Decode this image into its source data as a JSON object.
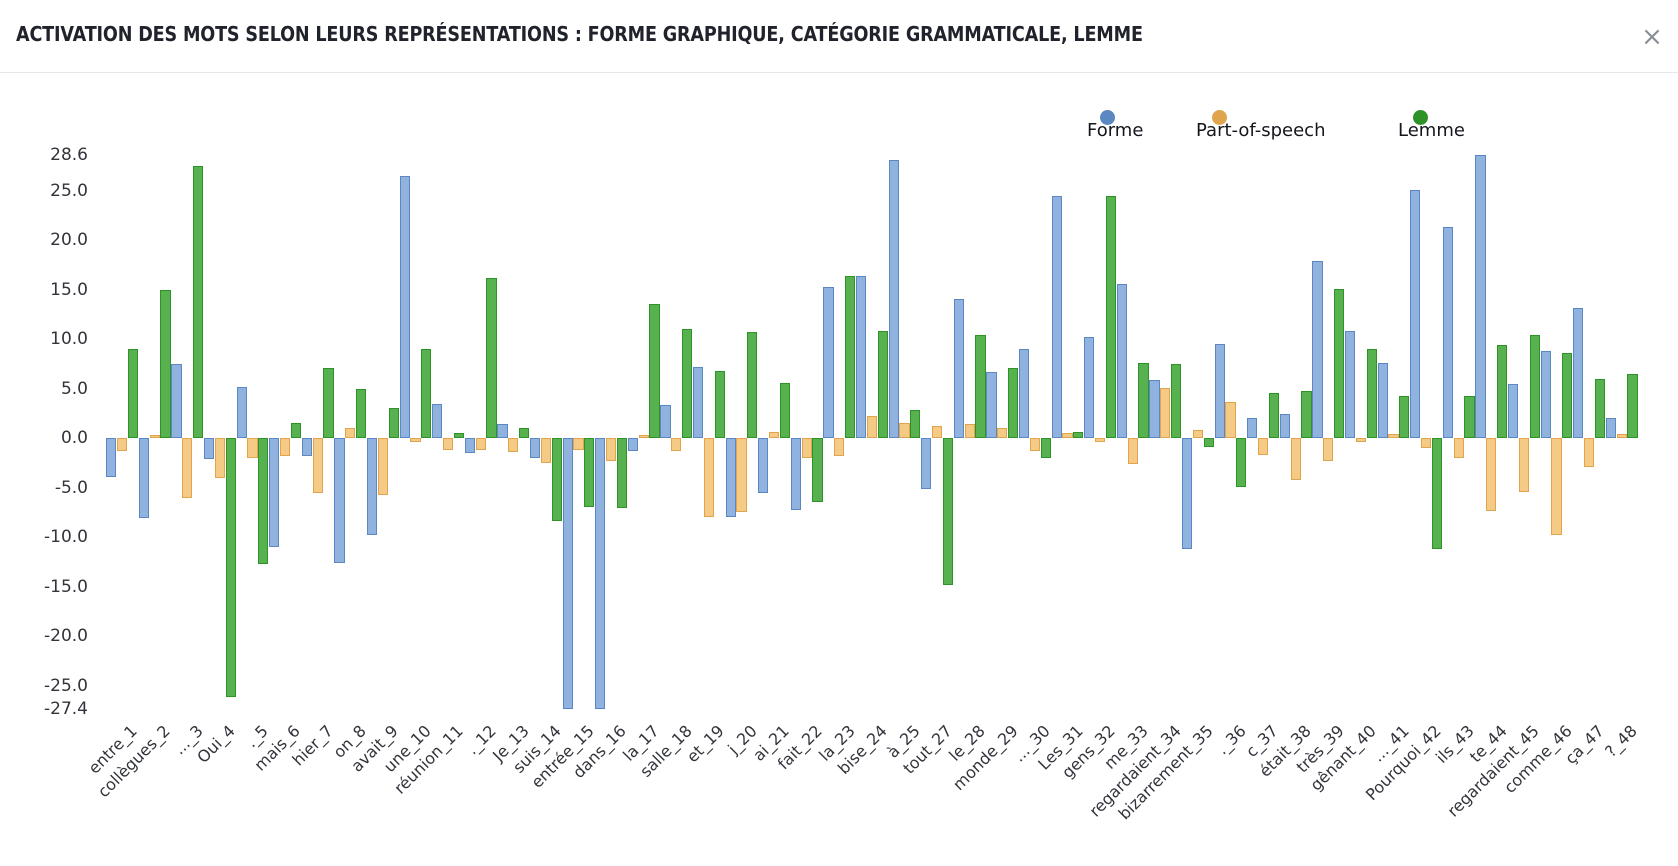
{
  "window": {
    "title": "ACTIVATION DES MOTS SELON LEURS REPRÉSENTATIONS : FORME GRAPHIQUE, CATÉGORIE GRAMMATICALE, LEMME",
    "close_label": "×"
  },
  "chart_data": {
    "type": "bar",
    "title": "ACTIVATION DES MOTS SELON LEURS REPRÉSENTATIONS : FORME GRAPHIQUE, CATÉGORIE GRAMMATICALE, LEMME",
    "xlabel": "",
    "ylabel": "",
    "grid": false,
    "legend_position": "top-right",
    "ylim": [
      -27.4,
      28.6
    ],
    "ytick_labels": [
      "28.6",
      "25.0",
      "20.0",
      "15.0",
      "10.0",
      "5.0",
      "0.0",
      "-5.0",
      "-10.0",
      "-15.0",
      "-20.0",
      "-25.0",
      "-27.4"
    ],
    "categories": [
      "entre_1",
      "collègues_2",
      "..._3",
      "Oui_4",
      "._5",
      "mais_6",
      "hier_7",
      "on_8",
      "avait_9",
      "une_10",
      "réunion_11",
      "._12",
      "Je_13",
      "suis_14",
      "entrée_15",
      "dans_16",
      "la_17",
      "salle_18",
      "et_19",
      "j_20",
      "ai_21",
      "fait_22",
      "la_23",
      "bise_24",
      "à_25",
      "tout_27",
      "le_28",
      "monde_29",
      "..._30",
      "Les_31",
      "gens_32",
      "me_33",
      "regardaient_34",
      "bizarrement_35",
      "._36",
      "c_37",
      "était_38",
      "très_39",
      "gênant_40",
      "..._41",
      "Pourquoi_42",
      "ils_43",
      "te_44",
      "regardaient_45",
      "comme_46",
      "ça_47",
      "?_48"
    ],
    "series": [
      {
        "name": "Forme",
        "fill": "#8FB2DE",
        "border": "#5B87C2",
        "values": [
          -3.9,
          -8.1,
          7.5,
          -2.1,
          5.2,
          -11.0,
          -1.8,
          -12.6,
          -9.8,
          26.5,
          3.4,
          -1.5,
          1.4,
          -2.0,
          -27.4,
          -27.4,
          -1.3,
          3.3,
          7.2,
          -8.0,
          -5.6,
          -7.3,
          15.3,
          16.4,
          28.1,
          -5.2,
          14.0,
          6.7,
          9.0,
          24.4,
          10.2,
          15.6,
          5.9,
          -11.2,
          9.5,
          2.0,
          2.4,
          17.9,
          10.8,
          7.6,
          25.1,
          21.3,
          28.6,
          5.5,
          8.8,
          13.1,
          2.0
        ]
      },
      {
        "name": "Part-of-speech",
        "fill": "#F5CA85",
        "border": "#E0A44E",
        "values": [
          -1.3,
          0.3,
          -6.1,
          -4.0,
          -2.0,
          -1.8,
          -5.6,
          1.0,
          -5.8,
          -0.4,
          -1.2,
          -1.2,
          -1.4,
          -2.5,
          -1.2,
          -2.3,
          0.3,
          -1.3,
          -8.0,
          -7.5,
          0.6,
          -2.0,
          -1.8,
          2.2,
          1.5,
          1.2,
          1.4,
          1.0,
          -1.3,
          0.5,
          -0.4,
          -2.6,
          5.1,
          0.8,
          3.6,
          -1.7,
          -4.2,
          -2.3,
          -0.4,
          0.4,
          -1.0,
          -2.0,
          -7.4,
          -5.5,
          -9.8,
          -2.9,
          0.4
        ]
      },
      {
        "name": "Lemme",
        "fill": "#57B14E",
        "border": "#2E9327",
        "values": [
          9.0,
          14.9,
          27.5,
          -26.2,
          -12.7,
          1.5,
          7.1,
          5.0,
          3.0,
          9.0,
          0.5,
          16.2,
          1.0,
          -8.4,
          -7.0,
          -7.1,
          13.5,
          11.0,
          6.8,
          10.7,
          5.6,
          -6.5,
          16.4,
          10.8,
          2.8,
          -14.8,
          10.4,
          7.1,
          -2.0,
          0.6,
          24.4,
          7.6,
          7.5,
          -0.9,
          -4.9,
          4.5,
          4.7,
          15.1,
          9.0,
          4.2,
          -11.2,
          4.2,
          9.4,
          10.4,
          8.6,
          6.0,
          6.5
        ]
      }
    ]
  }
}
